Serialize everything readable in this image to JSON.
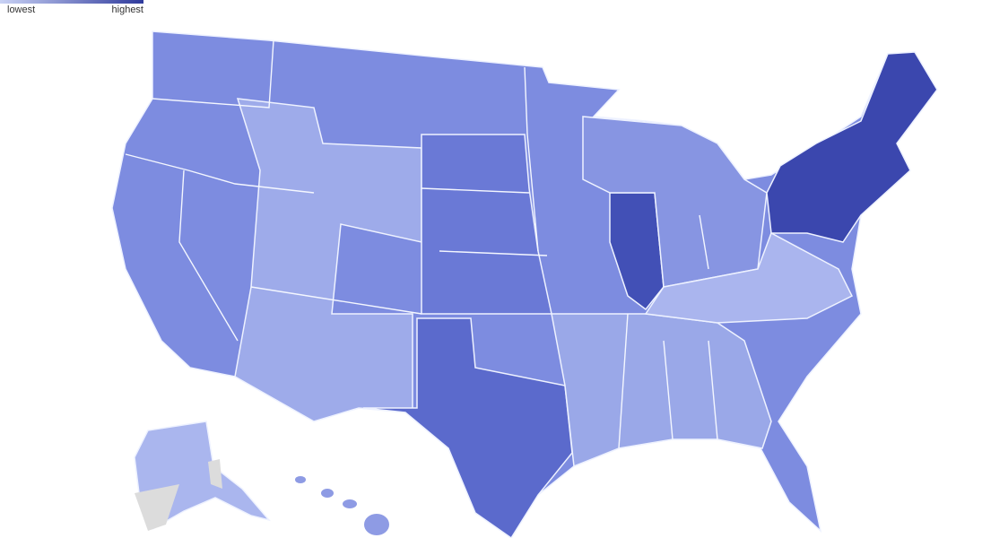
{
  "legend": {
    "low": "lowest",
    "high": "highest"
  }
}
